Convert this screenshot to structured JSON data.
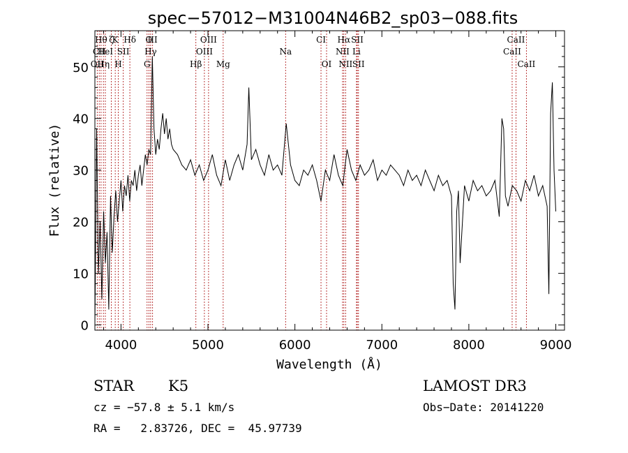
{
  "chart_data": {
    "type": "line",
    "title": "spec−57012−M31004N46B2_sp03−088.fits",
    "xlabel": "Wavelength (Å)",
    "ylabel": "Flux (relative)",
    "xlim": [
      3700,
      9100
    ],
    "ylim": [
      -1,
      57
    ],
    "xticks": [
      4000,
      5000,
      6000,
      7000,
      8000,
      9000
    ],
    "yticks": [
      0,
      10,
      20,
      30,
      40,
      50
    ],
    "series": [
      {
        "x": [
          3700,
          3720,
          3740,
          3760,
          3780,
          3800,
          3820,
          3840,
          3860,
          3880,
          3900,
          3920,
          3940,
          3960,
          3980,
          4000,
          4020,
          4040,
          4060,
          4080,
          4100,
          4120,
          4140,
          4160,
          4180,
          4200,
          4220,
          4240,
          4260,
          4280,
          4300,
          4320,
          4340,
          4360,
          4380,
          4400,
          4420,
          4440,
          4460,
          4480,
          4500,
          4520,
          4540,
          4560,
          4580,
          4600,
          4650,
          4700,
          4750,
          4800,
          4850,
          4900,
          4950,
          5000,
          5050,
          5100,
          5150,
          5200,
          5250,
          5300,
          5350,
          5400,
          5450,
          5470,
          5500,
          5550,
          5600,
          5650,
          5700,
          5750,
          5800,
          5850,
          5900,
          5950,
          6000,
          6050,
          6100,
          6150,
          6200,
          6250,
          6300,
          6350,
          6400,
          6450,
          6500,
          6550,
          6600,
          6650,
          6700,
          6750,
          6800,
          6850,
          6900,
          6950,
          7000,
          7050,
          7100,
          7150,
          7200,
          7250,
          7300,
          7350,
          7400,
          7450,
          7500,
          7550,
          7600,
          7650,
          7700,
          7750,
          7800,
          7820,
          7840,
          7860,
          7880,
          7900,
          7950,
          8000,
          8050,
          8100,
          8150,
          8200,
          8250,
          8300,
          8350,
          8380,
          8400,
          8420,
          8450,
          8500,
          8550,
          8600,
          8650,
          8700,
          8750,
          8800,
          8850,
          8900,
          8920,
          8940,
          8960,
          8980,
          9000
        ],
        "y": [
          0,
          38,
          10,
          20,
          5,
          22,
          12,
          18,
          3,
          25,
          14,
          21,
          26,
          20,
          24,
          28,
          22,
          27,
          25,
          29,
          24,
          28,
          27,
          30,
          26,
          29,
          31,
          27,
          30,
          33,
          31,
          34,
          33,
          52,
          38,
          33,
          36,
          34,
          38,
          41,
          37,
          40,
          36,
          38,
          35,
          34,
          33,
          31,
          30,
          32,
          29,
          31,
          28,
          30,
          33,
          29,
          27,
          32,
          28,
          31,
          33,
          30,
          35,
          46,
          32,
          34,
          31,
          29,
          33,
          30,
          31,
          29,
          39,
          31,
          28,
          27,
          30,
          29,
          31,
          28,
          24,
          30,
          28,
          33,
          29,
          27,
          34,
          30,
          28,
          31,
          29,
          30,
          32,
          28,
          30,
          29,
          31,
          30,
          29,
          27,
          30,
          28,
          29,
          27,
          30,
          28,
          26,
          29,
          27,
          28,
          25,
          8,
          3,
          22,
          26,
          12,
          27,
          24,
          28,
          26,
          27,
          25,
          26,
          28,
          21,
          40,
          38,
          25,
          23,
          27,
          26,
          24,
          28,
          26,
          29,
          25,
          27,
          23,
          6,
          41,
          47,
          30,
          22
        ]
      }
    ],
    "line_markers": [
      {
        "wavelength": 3727,
        "label": "OII",
        "row": 2
      },
      {
        "wavelength": 3750,
        "label": "CII",
        "row": 1
      },
      {
        "wavelength": 3771,
        "label": "Hθ",
        "row": 0
      },
      {
        "wavelength": 3798,
        "label": "Hη",
        "row": 2
      },
      {
        "wavelength": 3820,
        "label": "HeI",
        "row": 1
      },
      {
        "wavelength": 3889,
        "label": "ζ",
        "row": 0
      },
      {
        "wavelength": 3934,
        "label": "K",
        "row": 0
      },
      {
        "wavelength": 3969,
        "label": "H",
        "row": 2
      },
      {
        "wavelength": 4026,
        "label": "SII",
        "row": 1
      },
      {
        "wavelength": 4102,
        "label": "Hδ",
        "row": 0
      },
      {
        "wavelength": 4300,
        "label": "G",
        "row": 2
      },
      {
        "wavelength": 4321,
        "label": "O",
        "row": 0
      },
      {
        "wavelength": 4341,
        "label": "Hγ",
        "row": 1
      },
      {
        "wavelength": 4363,
        "label": "III",
        "row": 0
      },
      {
        "wavelength": 4861,
        "label": "Hβ",
        "row": 2
      },
      {
        "wavelength": 4959,
        "label": "OIII",
        "row": 1
      },
      {
        "wavelength": 5007,
        "label": "OIII",
        "row": 0
      },
      {
        "wavelength": 5175,
        "label": "Mg",
        "row": 2
      },
      {
        "wavelength": 5893,
        "label": "Na",
        "row": 1
      },
      {
        "wavelength": 6300,
        "label": "CI",
        "row": 0
      },
      {
        "wavelength": 6364,
        "label": "OI",
        "row": 2
      },
      {
        "wavelength": 6548,
        "label": "NII",
        "row": 1
      },
      {
        "wavelength": 6563,
        "label": "Hα",
        "row": 0
      },
      {
        "wavelength": 6583,
        "label": "NII",
        "row": 2
      },
      {
        "wavelength": 6708,
        "label": "Li",
        "row": 1
      },
      {
        "wavelength": 6717,
        "label": "SII",
        "row": 0
      },
      {
        "wavelength": 6731,
        "label": "SII",
        "row": 2
      },
      {
        "wavelength": 8498,
        "label": "CaII",
        "row": 1
      },
      {
        "wavelength": 8542,
        "label": "CaII",
        "row": 0
      },
      {
        "wavelength": 8662,
        "label": "CaII",
        "row": 2
      }
    ]
  },
  "info": {
    "object_class": "STAR",
    "subclass": "K5",
    "survey": "LAMOST DR3",
    "cz": "cz = −57.8 ± 5.1 km/s",
    "obs_date": "Obs−Date: 20141220",
    "coords": "RA =   2.83726, DEC =  45.97739"
  },
  "colors": {
    "spectrum": "#000000",
    "markers": "#b22222",
    "axes": "#000000"
  }
}
